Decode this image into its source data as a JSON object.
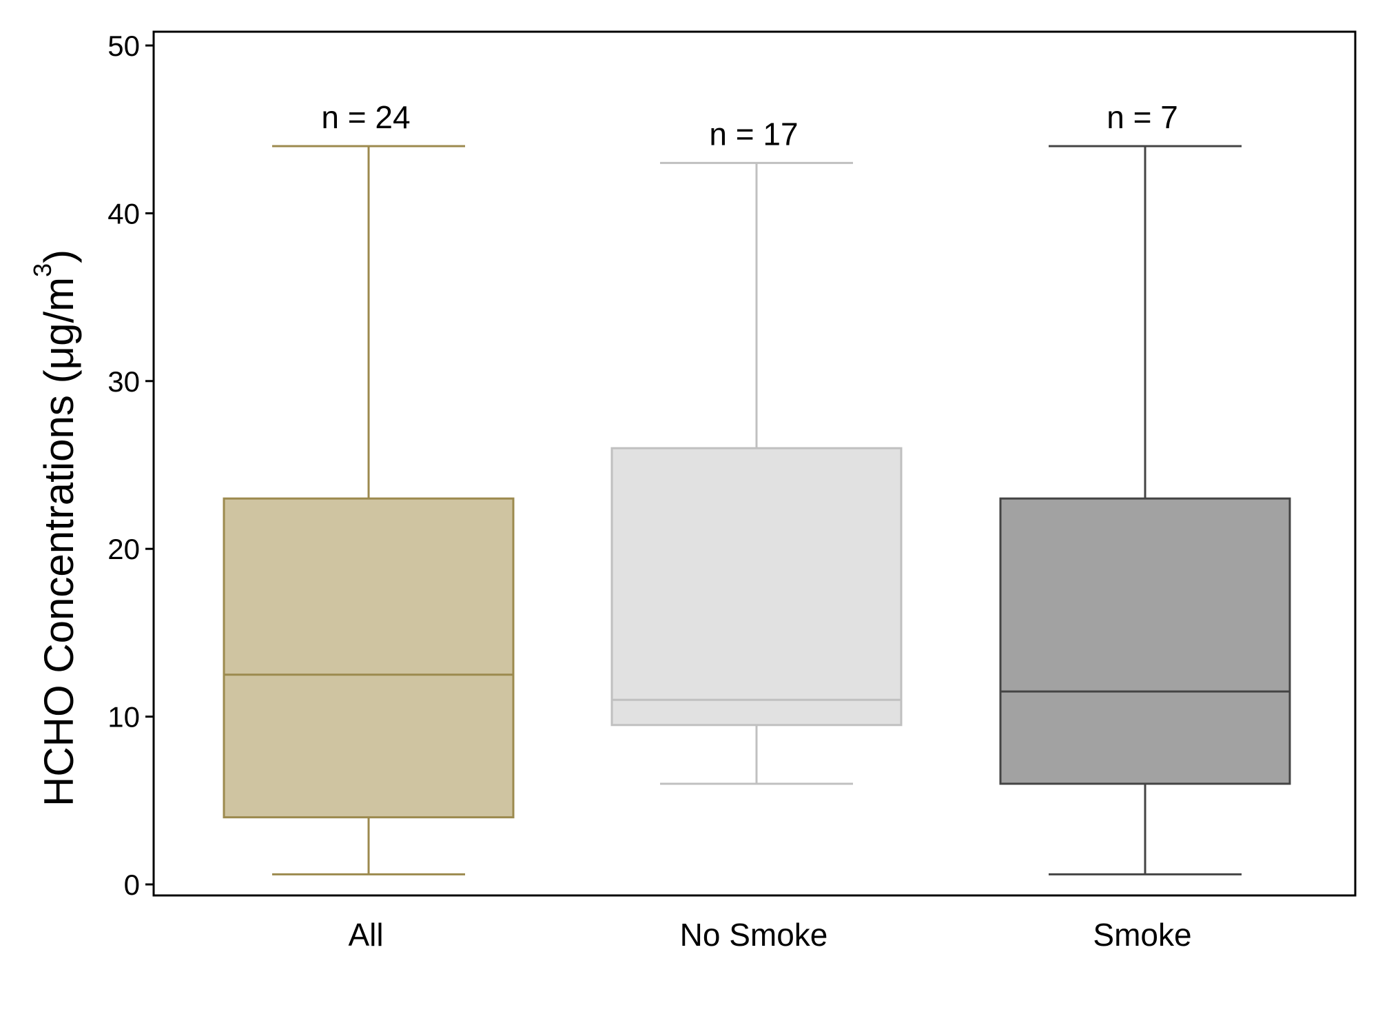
{
  "chart_data": {
    "type": "box",
    "categories": [
      "All",
      "No Smoke",
      "Smoke"
    ],
    "ylabel_main": "HCHO Concentrations (μg/m",
    "ylabel_sup": "3",
    "ylabel_close": ")",
    "ylim": [
      0,
      50
    ],
    "yticks": [
      0,
      10,
      20,
      30,
      40,
      50
    ],
    "grid": false,
    "boxes": [
      {
        "label": "All",
        "n_label": "n = 24",
        "whisker_low": 0.6,
        "q1": 4.0,
        "median": 12.5,
        "q3": 23.0,
        "whisker_high": 44.0,
        "fill": "#cfc4a1",
        "stroke": "#9c8a4e"
      },
      {
        "label": "No Smoke",
        "n_label": "n = 17",
        "whisker_low": 6.0,
        "q1": 9.5,
        "median": 11.0,
        "q3": 26.0,
        "whisker_high": 43.0,
        "fill": "#e1e1e1",
        "stroke": "#c0c0c0"
      },
      {
        "label": "Smoke",
        "n_label": "n = 7",
        "whisker_low": 0.6,
        "q1": 6.0,
        "median": 11.5,
        "q3": 23.0,
        "whisker_high": 44.0,
        "fill": "#a2a2a2",
        "stroke": "#444444"
      }
    ]
  }
}
